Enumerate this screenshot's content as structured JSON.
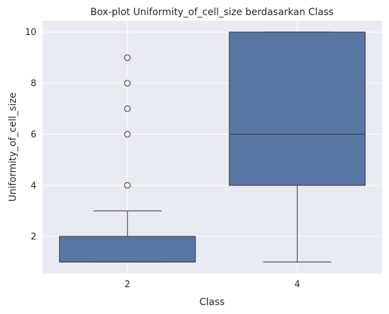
{
  "chart_data": {
    "type": "box",
    "title": "Box-plot Uniformity_of_cell_size berdasarkan Class",
    "xlabel": "Class",
    "ylabel": "Uniformity_of_cell_size",
    "categories": [
      "2",
      "4"
    ],
    "yticks": [
      2,
      4,
      6,
      8,
      10
    ],
    "ylim": [
      0.55,
      10.45
    ],
    "grid": true,
    "boxes": [
      {
        "category": "2",
        "whisker_low": 1,
        "q1": 1,
        "median": 1,
        "q3": 2,
        "whisker_high": 3,
        "outliers": [
          4,
          6,
          7,
          8,
          9
        ]
      },
      {
        "category": "4",
        "whisker_low": 1,
        "q1": 4,
        "median": 6,
        "q3": 10,
        "whisker_high": 10,
        "outliers": []
      }
    ],
    "colors": {
      "box": "#5875a4",
      "line": "#3d3d3d",
      "background": "#eaeaf2",
      "grid": "#ffffff"
    }
  }
}
